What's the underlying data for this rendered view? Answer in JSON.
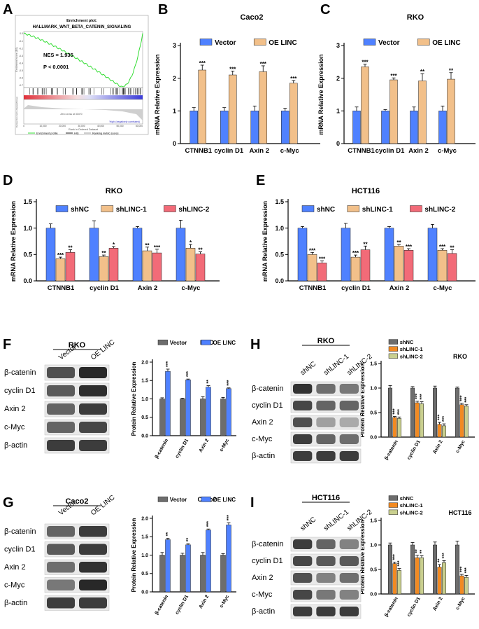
{
  "colors": {
    "vector": "#4f81ff",
    "oe": "#f2c08a",
    "shnc": "#4f81ff",
    "sh1": "#f2c08a",
    "sh2": "#f26b78",
    "prot_vector": "#6d6d6d",
    "prot_oe": "#4f81ff",
    "prot_shnc": "#6d6d6d",
    "prot_sh1": "#f28a22",
    "prot_sh2": "#c9cf8f",
    "gsea_line": "#33dd33"
  },
  "gsea": {
    "letter": "A",
    "title_1": "Enrichment plot:",
    "title_2": "HALLMARK_WNT_BETA_CATENIN_SIGNALING",
    "nes": "NES = 1.935",
    "p": "P < 0.0001",
    "ylabel_top": "Enrichment score (ES)",
    "ylabel_bottom": "Ranked list metric (Signal2Noise)",
    "xlabel": "Rank in Ordered Dataset",
    "pos_label": "'Low' (positively correlated)",
    "neg_label": "'High' (negatively correlated)",
    "zero_label": "Zero cross at 33470",
    "legend": [
      "Enrichment profile",
      "Hits",
      "Ranking metric scores"
    ],
    "es_ticks": [
      "0.0",
      "-0.1",
      "-0.2",
      "-0.3",
      "-0.4",
      "-0.5",
      "-0.6",
      "-0.7"
    ],
    "x_ticks": [
      "0",
      "10,000",
      "20,000",
      "30,000",
      "40,000",
      "50,000",
      "60,000"
    ]
  },
  "chart_data": [
    {
      "type": "bar",
      "panel": "B",
      "title": "Caco2",
      "categories": [
        "CTNNB1",
        "cyclin D1",
        "Axin 2",
        "c-Myc"
      ],
      "ylabel": "mRNA Relative Expression",
      "ylim": [
        0,
        3
      ],
      "yticks": [
        "0",
        "1",
        "2",
        "3"
      ],
      "legend_position": "top",
      "series": [
        {
          "name": "Vector",
          "values": [
            1.0,
            1.0,
            1.0,
            1.0
          ],
          "errors": [
            0.1,
            0.1,
            0.15,
            0.08
          ],
          "sig": [
            "",
            "",
            "",
            ""
          ]
        },
        {
          "name": "OE LINC",
          "values": [
            2.25,
            2.1,
            2.2,
            1.85
          ],
          "errors": [
            0.15,
            0.12,
            0.18,
            0.08
          ],
          "sig": [
            "***",
            "***",
            "***",
            "***"
          ]
        }
      ]
    },
    {
      "type": "bar",
      "panel": "C",
      "title": "RKO",
      "categories": [
        "CTNNB1",
        "cyclin D1",
        "Axin 2",
        "c-Myc"
      ],
      "ylabel": "mRNA Relative Expression",
      "ylim": [
        0,
        3
      ],
      "yticks": [
        "0",
        "1",
        "2",
        "3"
      ],
      "legend_position": "top",
      "series": [
        {
          "name": "Vector",
          "values": [
            1.0,
            1.0,
            1.0,
            1.0
          ],
          "errors": [
            0.12,
            0.04,
            0.12,
            0.15
          ],
          "sig": [
            "",
            "",
            "",
            ""
          ]
        },
        {
          "name": "OE LINC",
          "values": [
            2.35,
            1.95,
            1.92,
            1.97
          ],
          "errors": [
            0.08,
            0.06,
            0.22,
            0.2
          ],
          "sig": [
            "***",
            "***",
            "**",
            "**"
          ]
        }
      ]
    },
    {
      "type": "bar",
      "panel": "D",
      "title": "RKO",
      "categories": [
        "CTNNB1",
        "cyclin D1",
        "Axin 2",
        "c-Myc"
      ],
      "ylabel": "mRNA Relative Expression",
      "ylim": [
        0,
        1.5
      ],
      "yticks": [
        "0.0",
        "0.5",
        "1.0",
        "1.5"
      ],
      "legend_position": "top",
      "series": [
        {
          "name": "shNC",
          "values": [
            1.0,
            1.0,
            1.0,
            1.0
          ],
          "errors": [
            0.08,
            0.14,
            0.03,
            0.15
          ],
          "sig": [
            "",
            "",
            "",
            ""
          ]
        },
        {
          "name": "shLINC-1",
          "values": [
            0.42,
            0.46,
            0.57,
            0.62
          ],
          "errors": [
            0.03,
            0.03,
            0.07,
            0.07
          ],
          "sig": [
            "***",
            "**",
            "**",
            "*"
          ]
        },
        {
          "name": "shLINC-2",
          "values": [
            0.54,
            0.62,
            0.53,
            0.51
          ],
          "errors": [
            0.05,
            0.03,
            0.07,
            0.04
          ],
          "sig": [
            "**",
            "*",
            "***",
            "**"
          ]
        }
      ]
    },
    {
      "type": "bar",
      "panel": "E",
      "title": "HCT116",
      "categories": [
        "CTNNB1",
        "cyclin D1",
        "Axin 2",
        "c-Myc"
      ],
      "ylabel": "mRNA Relative Expression",
      "ylim": [
        0,
        1.5
      ],
      "yticks": [
        "0.0",
        "0.5",
        "1.0",
        "1.5"
      ],
      "legend_position": "top",
      "series": [
        {
          "name": "shNC",
          "values": [
            1.0,
            1.0,
            1.0,
            1.0
          ],
          "errors": [
            0.03,
            0.09,
            0.03,
            0.07
          ],
          "sig": [
            "",
            "",
            "",
            ""
          ]
        },
        {
          "name": "shLINC-1",
          "values": [
            0.5,
            0.45,
            0.66,
            0.58
          ],
          "errors": [
            0.04,
            0.04,
            0.03,
            0.03
          ],
          "sig": [
            "***",
            "***",
            "**",
            "***"
          ]
        },
        {
          "name": "shLINC-2",
          "values": [
            0.34,
            0.59,
            0.58,
            0.52
          ],
          "errors": [
            0.04,
            0.07,
            0.03,
            0.07
          ],
          "sig": [
            "***",
            "**",
            "***",
            "**"
          ]
        }
      ]
    },
    {
      "type": "bar",
      "panel": "F",
      "title": "RKO",
      "categories": [
        "β-catenin",
        "cyclin D1",
        "Axin 2",
        "c-Myc"
      ],
      "ylabel": "Protein Relative Expression",
      "ylim": [
        0,
        2.0
      ],
      "yticks": [
        "0.0",
        "0.5",
        "1.0",
        "1.5",
        "2.0"
      ],
      "legend_position": "top-left",
      "series": [
        {
          "name": "Vector",
          "values": [
            1.0,
            1.0,
            1.0,
            1.0
          ],
          "errors": [
            0.03,
            0.02,
            0.06,
            0.04
          ],
          "sig": [
            "",
            "",
            "",
            ""
          ]
        },
        {
          "name": "OE LINC",
          "values": [
            1.75,
            1.52,
            1.32,
            1.28
          ],
          "errors": [
            0.06,
            0.02,
            0.04,
            0.02
          ],
          "sig": [
            "***",
            "***",
            "**",
            "***"
          ]
        }
      ]
    },
    {
      "type": "bar",
      "panel": "G",
      "title": "Caco2",
      "categories": [
        "β-catenin",
        "cyclin D1",
        "Axin 2",
        "c-Myc"
      ],
      "ylabel": "Protein Relative Expression",
      "ylim": [
        0,
        2.0
      ],
      "yticks": [
        "0.0",
        "0.5",
        "1.0",
        "1.5",
        "2.0"
      ],
      "legend_position": "top-left",
      "series": [
        {
          "name": "Vector",
          "values": [
            1.0,
            1.0,
            1.0,
            1.0
          ],
          "errors": [
            0.07,
            0.05,
            0.07,
            0.04
          ],
          "sig": [
            "",
            "",
            "",
            ""
          ]
        },
        {
          "name": "OE LINC",
          "values": [
            1.42,
            1.28,
            1.68,
            1.82
          ],
          "errors": [
            0.04,
            0.03,
            0.03,
            0.06
          ],
          "sig": [
            "**",
            "**",
            "***",
            "***"
          ]
        }
      ]
    },
    {
      "type": "bar",
      "panel": "H",
      "title": "RKO",
      "categories": [
        "β-catenin",
        "cyclin D1",
        "Axin 2",
        "c-Myc"
      ],
      "ylabel": "Protein Relative Expression",
      "ylim": [
        0,
        1.5
      ],
      "yticks": [
        "0.0",
        "0.5",
        "1.0",
        "1.5"
      ],
      "legend_position": "top-right",
      "series": [
        {
          "name": "shNC",
          "values": [
            1.0,
            1.0,
            1.0,
            1.0
          ],
          "errors": [
            0.05,
            0.03,
            0.04,
            0.02
          ],
          "sig": [
            "",
            "",
            "",
            ""
          ]
        },
        {
          "name": "shLINC-1",
          "values": [
            0.4,
            0.7,
            0.26,
            0.66
          ],
          "errors": [
            0.02,
            0.03,
            0.04,
            0.03
          ],
          "sig": [
            "***",
            "***",
            "***",
            "***"
          ]
        },
        {
          "name": "shLINC-2",
          "values": [
            0.38,
            0.68,
            0.23,
            0.63
          ],
          "errors": [
            0.03,
            0.04,
            0.04,
            0.03
          ],
          "sig": [
            "***",
            "***",
            "***",
            "***"
          ]
        }
      ]
    },
    {
      "type": "bar",
      "panel": "I",
      "title": "HCT116",
      "categories": [
        "β-catenin",
        "cyclin D1",
        "Axin 2",
        "c-Myc"
      ],
      "ylabel": "Protein Relative Expression",
      "ylim": [
        0,
        1.5
      ],
      "yticks": [
        "0.0",
        "0.5",
        "1.0",
        "1.5"
      ],
      "legend_position": "top-right",
      "series": [
        {
          "name": "shNC",
          "values": [
            1.0,
            1.0,
            1.0,
            1.0
          ],
          "errors": [
            0.04,
            0.05,
            0.06,
            0.08
          ],
          "sig": [
            "",
            "",
            "",
            ""
          ]
        },
        {
          "name": "shLINC-1",
          "values": [
            0.62,
            0.74,
            0.55,
            0.37
          ],
          "errors": [
            0.03,
            0.05,
            0.05,
            0.03
          ],
          "sig": [
            "***",
            "**",
            "**",
            "***"
          ]
        },
        {
          "name": "shLINC-2",
          "values": [
            0.48,
            0.74,
            0.64,
            0.34
          ],
          "errors": [
            0.04,
            0.04,
            0.04,
            0.04
          ],
          "sig": [
            "***",
            "**",
            "***",
            "***"
          ]
        }
      ]
    }
  ],
  "blots": [
    {
      "panel": "F",
      "cell": "RKO",
      "lanes": [
        "Vector",
        "OE LINC"
      ],
      "rows": [
        {
          "label": "β-catenin",
          "intensity": [
            0.75,
            0.95
          ]
        },
        {
          "label": "cyclin D1",
          "intensity": [
            0.7,
            0.92
          ]
        },
        {
          "label": "Axin 2",
          "intensity": [
            0.65,
            0.85
          ]
        },
        {
          "label": "c-Myc",
          "intensity": [
            0.65,
            0.8
          ]
        },
        {
          "label": "β-actin",
          "intensity": [
            0.85,
            0.85
          ]
        }
      ]
    },
    {
      "panel": "G",
      "cell": "Caco2",
      "lanes": [
        "Vector",
        "OE LINC"
      ],
      "rows": [
        {
          "label": "β-catenin",
          "intensity": [
            0.65,
            0.85
          ]
        },
        {
          "label": "cyclin D1",
          "intensity": [
            0.7,
            0.85
          ]
        },
        {
          "label": "Axin 2",
          "intensity": [
            0.6,
            0.9
          ]
        },
        {
          "label": "c-Myc",
          "intensity": [
            0.55,
            0.95
          ]
        },
        {
          "label": "β-actin",
          "intensity": [
            0.85,
            0.85
          ]
        }
      ]
    },
    {
      "panel": "H",
      "cell": "RKO",
      "lanes": [
        "shNC",
        "shLINC-1",
        "shLINC-2"
      ],
      "rows": [
        {
          "label": "β-catenin",
          "intensity": [
            0.9,
            0.6,
            0.55
          ]
        },
        {
          "label": "cyclin D1",
          "intensity": [
            0.8,
            0.65,
            0.65
          ]
        },
        {
          "label": "Axin 2",
          "intensity": [
            0.75,
            0.35,
            0.3
          ]
        },
        {
          "label": "c-Myc",
          "intensity": [
            0.85,
            0.65,
            0.6
          ]
        },
        {
          "label": "β-actin",
          "intensity": [
            0.85,
            0.85,
            0.85
          ]
        }
      ]
    },
    {
      "panel": "I",
      "cell": "HCT116",
      "lanes": [
        "shNC",
        "shLINC-1",
        "shLINC-2"
      ],
      "rows": [
        {
          "label": "β-catenin",
          "intensity": [
            0.85,
            0.65,
            0.5
          ]
        },
        {
          "label": "cyclin D1",
          "intensity": [
            0.8,
            0.7,
            0.7
          ]
        },
        {
          "label": "Axin 2",
          "intensity": [
            0.75,
            0.5,
            0.6
          ]
        },
        {
          "label": "c-Myc",
          "intensity": [
            0.8,
            0.55,
            0.5
          ]
        },
        {
          "label": "β-actin",
          "intensity": [
            0.85,
            0.85,
            0.85
          ]
        }
      ]
    }
  ]
}
